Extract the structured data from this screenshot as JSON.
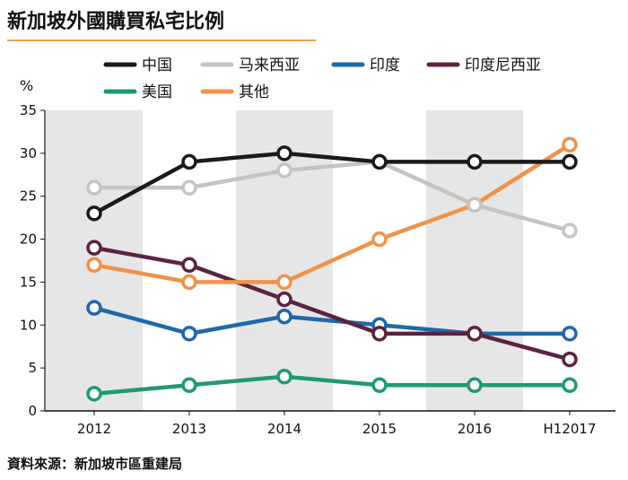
{
  "title": "新加坡外國購買私宅比例",
  "source": "資料來源：新加坡市區重建局",
  "chart_data": {
    "type": "line",
    "title": "新加坡外國購買私宅比例",
    "xlabel": "",
    "ylabel": "%",
    "categories": [
      "2012",
      "2013",
      "2014",
      "2015",
      "2016",
      "H12017"
    ],
    "ylim": [
      0,
      35
    ],
    "yticks": [
      0,
      5,
      10,
      15,
      20,
      25,
      30,
      35
    ],
    "shaded_categories": [
      "2012",
      "2014",
      "2016"
    ],
    "legend_position": "top",
    "series": [
      {
        "name": "中国",
        "color": "#1a1a1a",
        "values": [
          23,
          29,
          30,
          29,
          29,
          29
        ]
      },
      {
        "name": "马来西亚",
        "color": "#c4c4c4",
        "values": [
          26,
          26,
          28,
          29,
          24,
          21
        ]
      },
      {
        "name": "印度",
        "color": "#1f68aa",
        "values": [
          12,
          9,
          11,
          10,
          9,
          9
        ]
      },
      {
        "name": "印度尼西亚",
        "color": "#5a2440",
        "values": [
          19,
          17,
          13,
          9,
          9,
          6
        ]
      },
      {
        "name": "美国",
        "color": "#1f9a72",
        "values": [
          2,
          3,
          4,
          3,
          3,
          3
        ]
      },
      {
        "name": "其他",
        "color": "#f0924a",
        "values": [
          17,
          15,
          15,
          20,
          24,
          31
        ]
      }
    ],
    "draw_order": [
      "美国",
      "印度",
      "印度尼西亚",
      "其他",
      "马来西亚",
      "中国"
    ]
  }
}
